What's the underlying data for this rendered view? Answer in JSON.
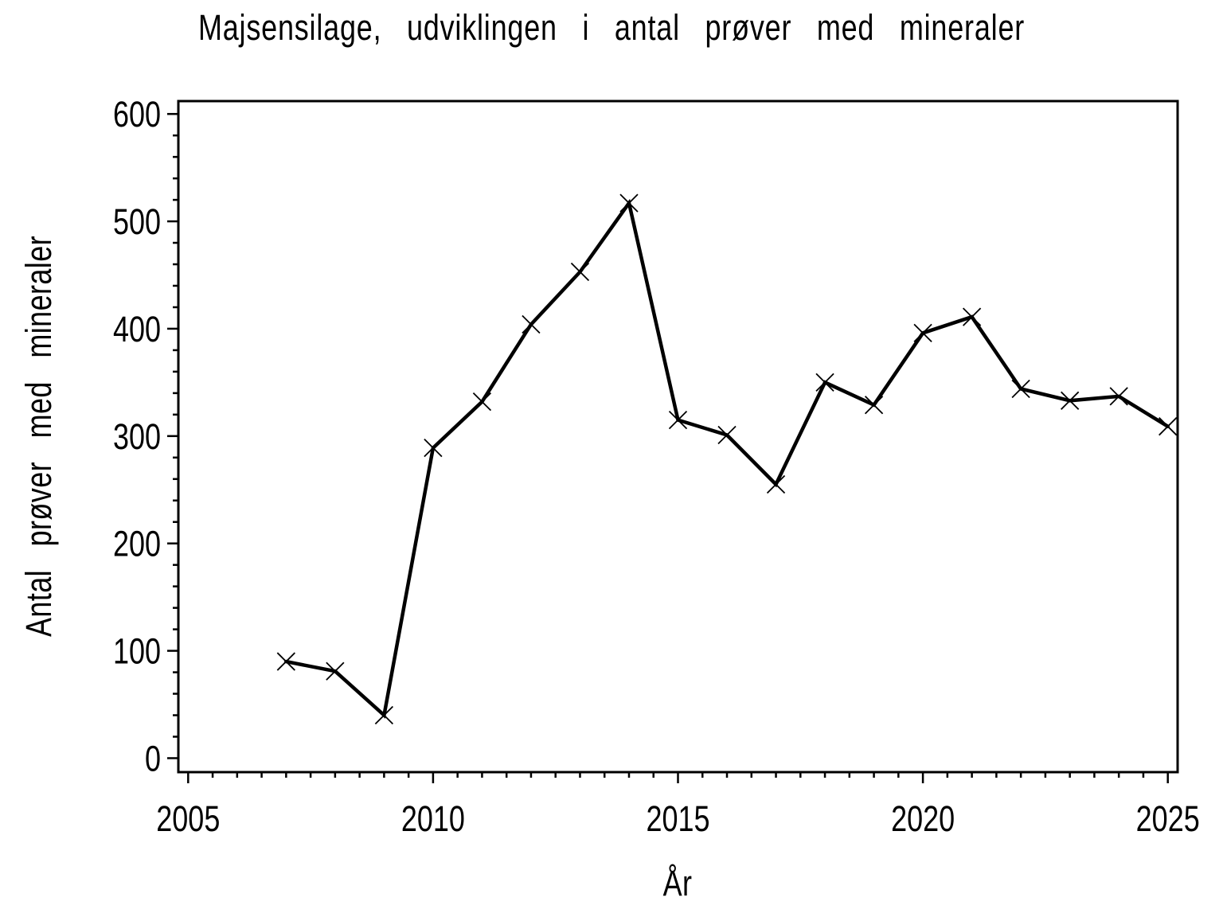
{
  "chart_data": {
    "type": "line",
    "title": "Majsensilage, udviklingen i antal prøver med mineraler",
    "xlabel": "År",
    "ylabel": "Antal prøver med mineraler",
    "x": [
      2007,
      2008,
      2009,
      2010,
      2011,
      2012,
      2013,
      2014,
      2015,
      2016,
      2017,
      2018,
      2019,
      2020,
      2021,
      2022,
      2023,
      2024,
      2025
    ],
    "values": [
      90,
      81,
      40,
      289,
      332,
      404,
      453,
      517,
      315,
      301,
      255,
      350,
      329,
      396,
      411,
      344,
      333,
      337,
      309
    ],
    "series_name": "Antal prøver med mineraler",
    "xlim": [
      2004.8,
      2025.2
    ],
    "ylim": [
      -13,
      612
    ],
    "xticks_major": [
      2005,
      2010,
      2015,
      2020,
      2025
    ],
    "x_minor_step": 0.5,
    "x_minor_start": 2005,
    "x_minor_end": 2025,
    "yticks_major": [
      0,
      100,
      200,
      300,
      400,
      500,
      600
    ],
    "y_minor_step": 20,
    "y_minor_start": 0,
    "y_minor_end": 600,
    "marker": "x",
    "line_color": "#000000",
    "axis_color": "#000000",
    "background_color": "#ffffff",
    "grid": false,
    "legend": null
  }
}
